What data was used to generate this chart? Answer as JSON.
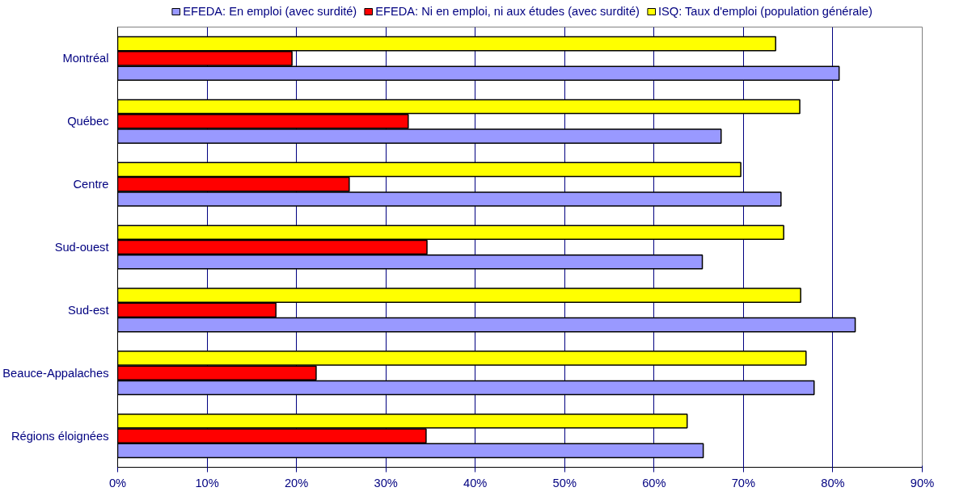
{
  "chart_data": {
    "type": "bar",
    "orientation": "horizontal",
    "categories": [
      "Montréal",
      "Québec",
      "Centre",
      "Sud-ouest",
      "Sud-est",
      "Beauce-Appalaches",
      "Régions éloignées"
    ],
    "series": [
      {
        "name": "EFEDA: En emploi (avec surdité)",
        "color": "#9999ff",
        "values": [
          80.7,
          67.5,
          74.2,
          65.4,
          82.5,
          77.9,
          65.5
        ]
      },
      {
        "name": "EFEDA: Ni en emploi, ni aux études (avec surdité)",
        "color": "#ff0000",
        "values": [
          19.5,
          32.5,
          25.9,
          34.6,
          17.7,
          22.2,
          34.5
        ]
      },
      {
        "name": "ISQ: Taux d'emploi (population générale)",
        "color": "#ffff00",
        "values": [
          73.6,
          76.3,
          69.7,
          74.5,
          76.4,
          77.0,
          63.7
        ]
      }
    ],
    "xlim": [
      0,
      90
    ],
    "xticks": [
      {
        "value": 0,
        "label": "0%"
      },
      {
        "value": 10,
        "label": "10%"
      },
      {
        "value": 20,
        "label": "20%"
      },
      {
        "value": 30,
        "label": "30%"
      },
      {
        "value": 40,
        "label": "40%"
      },
      {
        "value": 50,
        "label": "50%"
      },
      {
        "value": 60,
        "label": "60%"
      },
      {
        "value": 70,
        "label": "70%"
      },
      {
        "value": 80,
        "label": "80%"
      },
      {
        "value": 90,
        "label": "90%"
      }
    ],
    "grid": "x",
    "legend": "top"
  }
}
